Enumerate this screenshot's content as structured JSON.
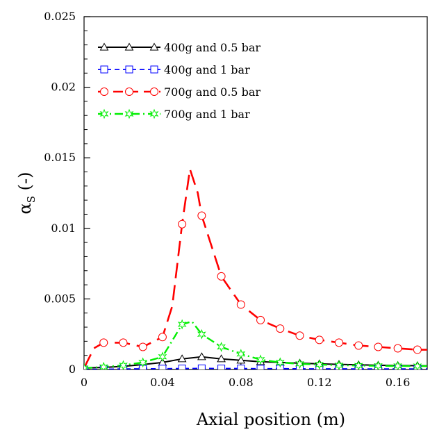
{
  "chart_data": {
    "type": "line",
    "title": "",
    "xlabel": "Axial position (m)",
    "ylabel_main": "α",
    "ylabel_sub": "S",
    "ylabel_suffix": " (-)",
    "xlim": [
      0,
      0.175
    ],
    "ylim": [
      0,
      0.025
    ],
    "x_ticks": [
      0,
      0.04,
      0.08,
      0.12,
      0.16
    ],
    "x_tick_labels": [
      "0",
      "0.04",
      "0.08",
      "0.12",
      "0.16"
    ],
    "y_ticks": [
      0,
      0.005,
      0.01,
      0.015,
      0.02,
      0.025
    ],
    "y_tick_labels": [
      "0",
      "0.005",
      "0.01",
      "0.015",
      "0.02",
      "0.025"
    ],
    "grid": false,
    "legend_position": "top-left",
    "series": [
      {
        "name": "400g and 0.5 bar",
        "color": "#000000",
        "dash": "solid",
        "marker": "triangle",
        "x": [
          0,
          0.01,
          0.02,
          0.03,
          0.04,
          0.05,
          0.06,
          0.07,
          0.08,
          0.09,
          0.1,
          0.11,
          0.12,
          0.13,
          0.14,
          0.15,
          0.16,
          0.17,
          0.175
        ],
        "y": [
          0.0001,
          0.00015,
          0.00022,
          0.00035,
          0.0005,
          0.00075,
          0.0009,
          0.00075,
          0.00065,
          0.00055,
          0.0005,
          0.00045,
          0.0004,
          0.00036,
          0.00033,
          0.0003,
          0.00028,
          0.00027,
          0.00026
        ]
      },
      {
        "name": "400g and 1 bar",
        "color": "#0000ff",
        "dash": "dash",
        "marker": "square",
        "x": [
          0,
          0.01,
          0.02,
          0.03,
          0.04,
          0.05,
          0.06,
          0.07,
          0.08,
          0.09,
          0.1,
          0.11,
          0.12,
          0.13,
          0.14,
          0.15,
          0.16,
          0.17,
          0.175
        ],
        "y": [
          0.0,
          2e-05,
          4e-05,
          5e-05,
          6e-05,
          7e-05,
          8e-05,
          7e-05,
          7e-05,
          6e-05,
          6e-05,
          5e-05,
          5e-05,
          5e-05,
          4e-05,
          4e-05,
          4e-05,
          4e-05,
          4e-05
        ]
      },
      {
        "name": "700g and 0.5 bar",
        "color": "#ff0000",
        "dash": "longdash",
        "marker": "circle",
        "x": [
          0,
          0.005,
          0.01,
          0.02,
          0.03,
          0.04,
          0.045,
          0.05,
          0.054,
          0.058,
          0.06,
          0.07,
          0.08,
          0.09,
          0.1,
          0.11,
          0.12,
          0.13,
          0.14,
          0.15,
          0.16,
          0.17,
          0.175
        ],
        "y": [
          0.0001,
          0.0015,
          0.0019,
          0.0019,
          0.0016,
          0.0023,
          0.0045,
          0.0103,
          0.0142,
          0.0125,
          0.0109,
          0.0066,
          0.0046,
          0.0035,
          0.0029,
          0.0024,
          0.0021,
          0.0019,
          0.0017,
          0.0016,
          0.0015,
          0.0014,
          0.0014
        ]
      },
      {
        "name": "700g and 1 bar",
        "color": "#00ee00",
        "dash": "dashdot",
        "marker": "star",
        "x": [
          0,
          0.01,
          0.02,
          0.03,
          0.04,
          0.05,
          0.055,
          0.06,
          0.07,
          0.08,
          0.09,
          0.1,
          0.11,
          0.12,
          0.13,
          0.14,
          0.15,
          0.16,
          0.17,
          0.175
        ],
        "y": [
          0.0001,
          0.00018,
          0.0003,
          0.0005,
          0.0009,
          0.0032,
          0.0034,
          0.0025,
          0.0016,
          0.0011,
          0.0007,
          0.0005,
          0.0004,
          0.00035,
          0.0003,
          0.00028,
          0.00026,
          0.00025,
          0.00024,
          0.00024
        ]
      }
    ],
    "marker_points": [
      {
        "series": 0,
        "x": [
          0,
          0.01,
          0.02,
          0.03,
          0.04,
          0.05,
          0.06,
          0.07,
          0.08,
          0.09,
          0.1,
          0.11,
          0.12,
          0.13,
          0.14,
          0.15,
          0.16,
          0.17
        ],
        "y": [
          0.0001,
          0.00015,
          0.00022,
          0.00035,
          0.0005,
          0.00075,
          0.0009,
          0.00075,
          0.00065,
          0.00055,
          0.0005,
          0.00045,
          0.0004,
          0.00036,
          0.00033,
          0.0003,
          0.00028,
          0.00027
        ]
      },
      {
        "series": 1,
        "x": [
          0,
          0.01,
          0.02,
          0.03,
          0.04,
          0.05,
          0.06,
          0.07,
          0.08,
          0.09,
          0.1,
          0.11,
          0.12,
          0.13,
          0.14,
          0.15,
          0.16,
          0.17
        ],
        "y": [
          0.0,
          2e-05,
          4e-05,
          5e-05,
          6e-05,
          7e-05,
          8e-05,
          7e-05,
          7e-05,
          6e-05,
          6e-05,
          5e-05,
          5e-05,
          5e-05,
          4e-05,
          4e-05,
          4e-05,
          4e-05
        ]
      },
      {
        "series": 2,
        "x": [
          0.01,
          0.02,
          0.03,
          0.04,
          0.05,
          0.06,
          0.07,
          0.08,
          0.09,
          0.1,
          0.11,
          0.12,
          0.13,
          0.14,
          0.15,
          0.16,
          0.17
        ],
        "y": [
          0.0019,
          0.0019,
          0.0016,
          0.0023,
          0.0103,
          0.0109,
          0.0066,
          0.0046,
          0.0035,
          0.0029,
          0.0024,
          0.0021,
          0.0019,
          0.0017,
          0.0016,
          0.0015,
          0.0014
        ]
      },
      {
        "series": 3,
        "x": [
          0,
          0.01,
          0.02,
          0.03,
          0.04,
          0.05,
          0.06,
          0.07,
          0.08,
          0.09,
          0.1,
          0.11,
          0.12,
          0.13,
          0.14,
          0.15,
          0.16,
          0.17
        ],
        "y": [
          0.0001,
          0.00018,
          0.0003,
          0.0005,
          0.0009,
          0.0032,
          0.0025,
          0.0016,
          0.0011,
          0.0007,
          0.0005,
          0.0004,
          0.00035,
          0.0003,
          0.00028,
          0.00026,
          0.00025,
          0.00024
        ]
      }
    ]
  }
}
